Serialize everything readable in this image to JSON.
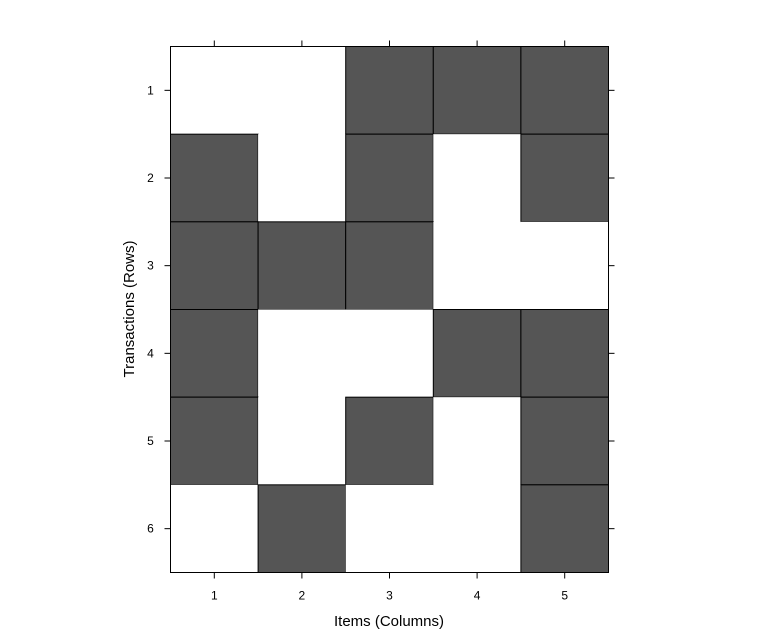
{
  "chart_data": {
    "type": "heatmap",
    "title": "",
    "xlabel": "Items (Columns)",
    "ylabel": "Transactions (Rows)",
    "x_ticks": [
      "1",
      "2",
      "3",
      "4",
      "5"
    ],
    "y_ticks": [
      "1",
      "2",
      "3",
      "4",
      "5",
      "6"
    ],
    "filled_color": "#555555",
    "empty_color": "#ffffff",
    "matrix": [
      [
        0,
        0,
        1,
        1,
        1
      ],
      [
        1,
        0,
        1,
        0,
        1
      ],
      [
        1,
        1,
        1,
        0,
        0
      ],
      [
        1,
        0,
        0,
        1,
        1
      ],
      [
        1,
        0,
        1,
        0,
        1
      ],
      [
        0,
        1,
        0,
        0,
        1
      ]
    ]
  }
}
